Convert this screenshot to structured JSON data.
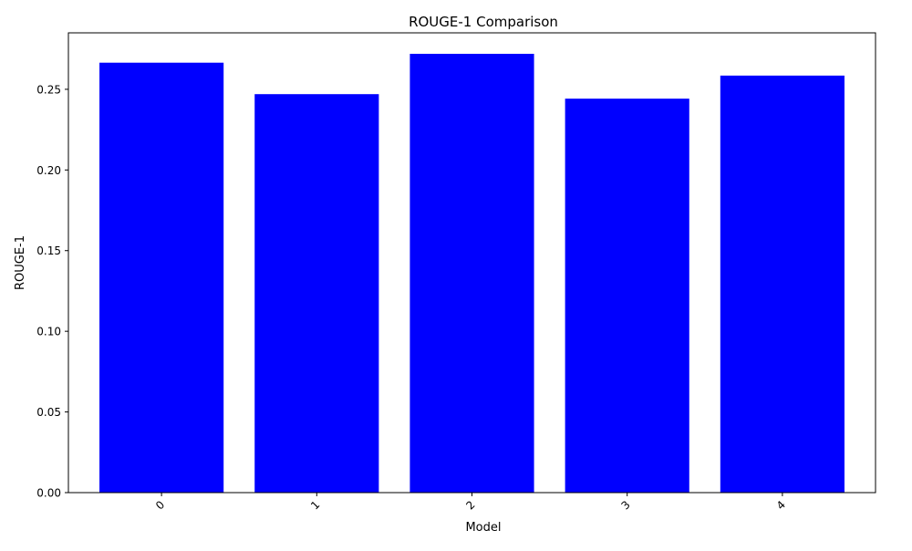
{
  "chart_data": {
    "type": "bar",
    "title": "ROUGE-1 Comparison",
    "xlabel": "Model",
    "ylabel": "ROUGE-1",
    "categories": [
      "0",
      "1",
      "2",
      "3",
      "4"
    ],
    "values": [
      0.2665,
      0.247,
      0.272,
      0.2442,
      0.2585
    ],
    "ylim": [
      0,
      0.285
    ],
    "yticks": [
      0.0,
      0.05,
      0.1,
      0.15,
      0.2,
      0.25
    ],
    "ytick_labels": [
      "0.00",
      "0.05",
      "0.10",
      "0.15",
      "0.20",
      "0.25"
    ],
    "xtick_rotation_deg": 45,
    "bar_color": "#0000ff",
    "grid": false,
    "legend": "none"
  }
}
